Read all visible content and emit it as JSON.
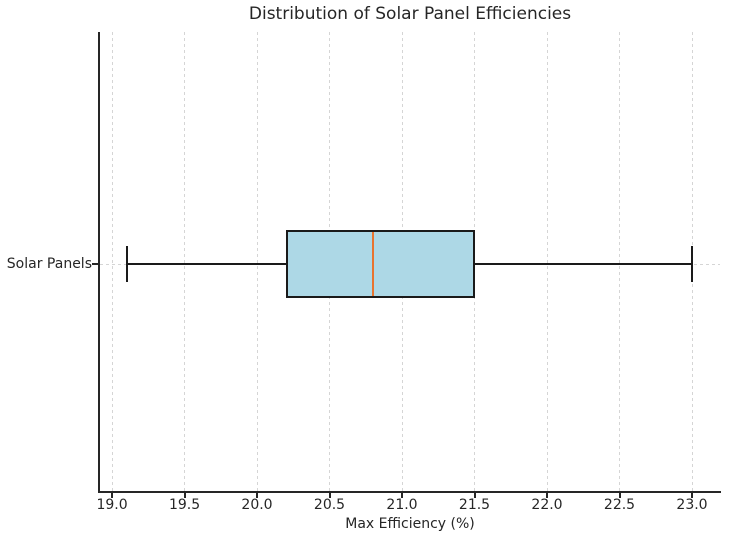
{
  "chart_data": {
    "type": "boxplot",
    "orientation": "horizontal",
    "title": "Distribution of Solar Panel Efficiencies",
    "xlabel": "Max Efficiency (%)",
    "ylabel": "",
    "categories": [
      "Solar Panels"
    ],
    "series": [
      {
        "name": "Solar Panels",
        "whisker_low": 19.1,
        "q1": 20.2,
        "median": 20.8,
        "q3": 21.5,
        "whisker_high": 23.0
      }
    ],
    "x_ticks": [
      19.0,
      19.5,
      20.0,
      20.5,
      21.0,
      21.5,
      22.0,
      22.5,
      23.0
    ],
    "x_tick_labels": [
      "19.0",
      "19.5",
      "20.0",
      "20.5",
      "21.0",
      "21.5",
      "22.0",
      "22.5",
      "23.0"
    ],
    "xlim": [
      18.917,
      23.193
    ],
    "grid": true,
    "grid_style": "dashed",
    "legend": "none",
    "colors": {
      "box_fill": "#add8e6",
      "box_edge": "#1a1a1a",
      "median": "#e8742f",
      "whisker": "#1a1a1a",
      "grid": "#d5d5d5",
      "spine": "#262626",
      "text": "#262626",
      "background": "#ffffff"
    }
  }
}
